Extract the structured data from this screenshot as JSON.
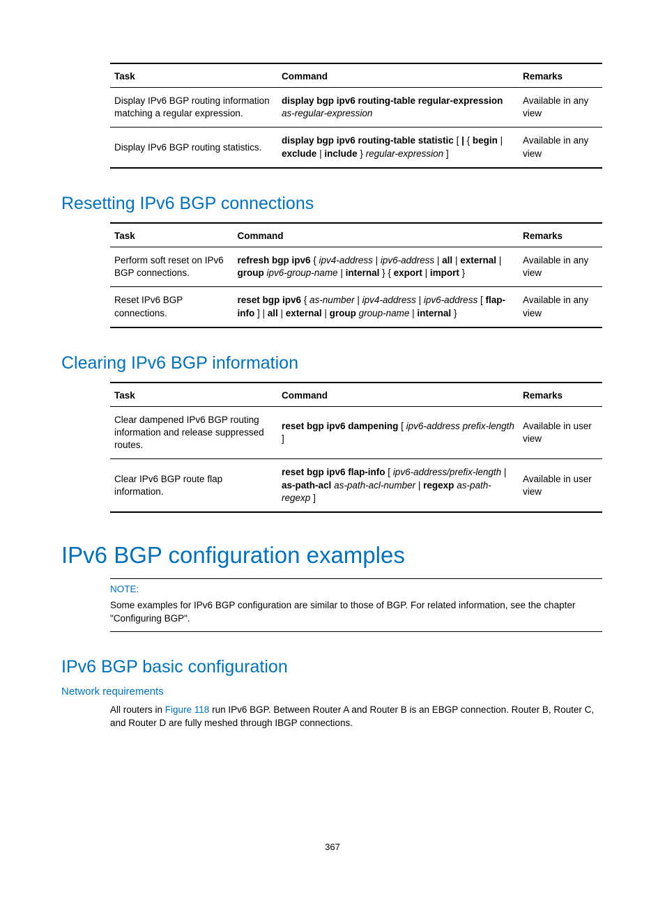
{
  "table1": {
    "headers": {
      "task": "Task",
      "command": "Command",
      "remarks": "Remarks"
    },
    "rows": [
      {
        "task": "Display IPv6 BGP routing information matching a regular expression.",
        "cmd": "<b>display bgp ipv6 routing-table regular-expression</b> <i>as-regular-expression</i>",
        "rem": "Available in any view"
      },
      {
        "task": "Display IPv6 BGP routing statistics.",
        "cmd": "<b>display bgp ipv6 routing-table statistic</b> [ <b>|</b> { <b>begin</b> | <b>exclude</b> | <b>include</b> } <i>regular-expression</i> ]",
        "rem": "Available in any view"
      }
    ]
  },
  "sect1": {
    "title": "Resetting IPv6 BGP connections"
  },
  "table2": {
    "headers": {
      "task": "Task",
      "command": "Command",
      "remarks": "Remarks"
    },
    "rows": [
      {
        "task": "Perform soft reset on IPv6 BGP connections.",
        "cmd": "<b>refresh bgp ipv6</b> { <i>ipv4-address</i> | <i>ipv6-address</i> | <b>all</b> | <b>external</b> | <b>group</b> <i>ipv6-group-name</i> | <b>internal</b> } { <b>export</b> | <b>import</b> }",
        "rem": "Available in any view"
      },
      {
        "task": "Reset IPv6 BGP connections.",
        "cmd": "<b>reset bgp ipv6</b> { <i>as-number</i> | <i>ipv4-address</i> | <i>ipv6-address</i> [ <b>flap-info</b> ] | <b>all</b> | <b>external</b> | <b>group</b> <i>group-name</i> | <b>internal</b> }",
        "rem": "Available in any view"
      }
    ]
  },
  "sect2": {
    "title": "Clearing IPv6 BGP information"
  },
  "table3": {
    "headers": {
      "task": "Task",
      "command": "Command",
      "remarks": "Remarks"
    },
    "rows": [
      {
        "task": "Clear dampened IPv6 BGP routing information and release suppressed routes.",
        "cmd": "<b>reset bgp ipv6 dampening</b> [ <i>ipv6-address prefix-length</i> ]",
        "rem": "Available in user view"
      },
      {
        "task": "Clear IPv6 BGP route flap information.",
        "cmd": "<b>reset bgp ipv6 flap-info</b> [ <i>ipv6-address/prefix-length</i> | <b>as-path-acl</b> <i>as-path-acl-number</i> | <b>regexp</b> <i>as-path-regexp</i> ]",
        "rem": "Available in user view"
      }
    ]
  },
  "bigsect": {
    "title": "IPv6 BGP configuration examples"
  },
  "note": {
    "label": "NOTE:",
    "text": "Some examples for IPv6 BGP configuration are similar to those of BGP. For related information, see the chapter \"Configuring BGP\"."
  },
  "sect3": {
    "title": "IPv6 BGP basic configuration"
  },
  "subsect": {
    "title": "Network requirements"
  },
  "body": {
    "pre": "All routers in ",
    "link": "Figure 118",
    "post": " run IPv6 BGP. Between Router A and Router B is an EBGP connection. Router B, Router C, and Router D are fully meshed through IBGP connections."
  },
  "pagenum": "367"
}
